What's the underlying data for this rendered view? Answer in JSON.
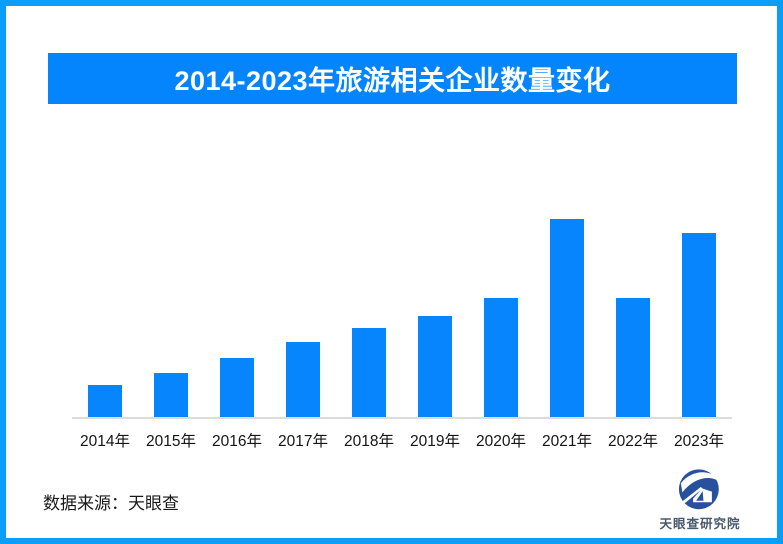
{
  "page": {
    "background": "#FFFFFF",
    "border_color": "#0A9EF8"
  },
  "header": {
    "title": "2014-2023年旅游相关企业数量变化",
    "background": "#0585FD",
    "text_color": "#FFFFFF"
  },
  "chart_data": {
    "type": "bar",
    "title": "2014-2023年旅游相关企业数量变化",
    "categories": [
      "2014年",
      "2015年",
      "2016年",
      "2017年",
      "2018年",
      "2019年",
      "2020年",
      "2021年",
      "2022年",
      "2023年"
    ],
    "values": [
      16,
      22,
      30,
      38,
      45,
      51,
      60,
      100,
      60,
      93
    ],
    "units": "relative height, no value axis or data labels shown",
    "xlabel": "",
    "ylabel": "",
    "ylim": [
      0,
      100
    ],
    "grid": false,
    "legend": false,
    "bar_color": "#0685FD",
    "axis_line_color": "#DCDCDC",
    "label_color": "#151515"
  },
  "footer": {
    "source_label": "数据来源：天眼查",
    "logo": {
      "icon": "tianyancha-eye-logo",
      "label": "天眼查研究院",
      "mark_color": "#27519E",
      "text_color": "#475A6E"
    }
  }
}
